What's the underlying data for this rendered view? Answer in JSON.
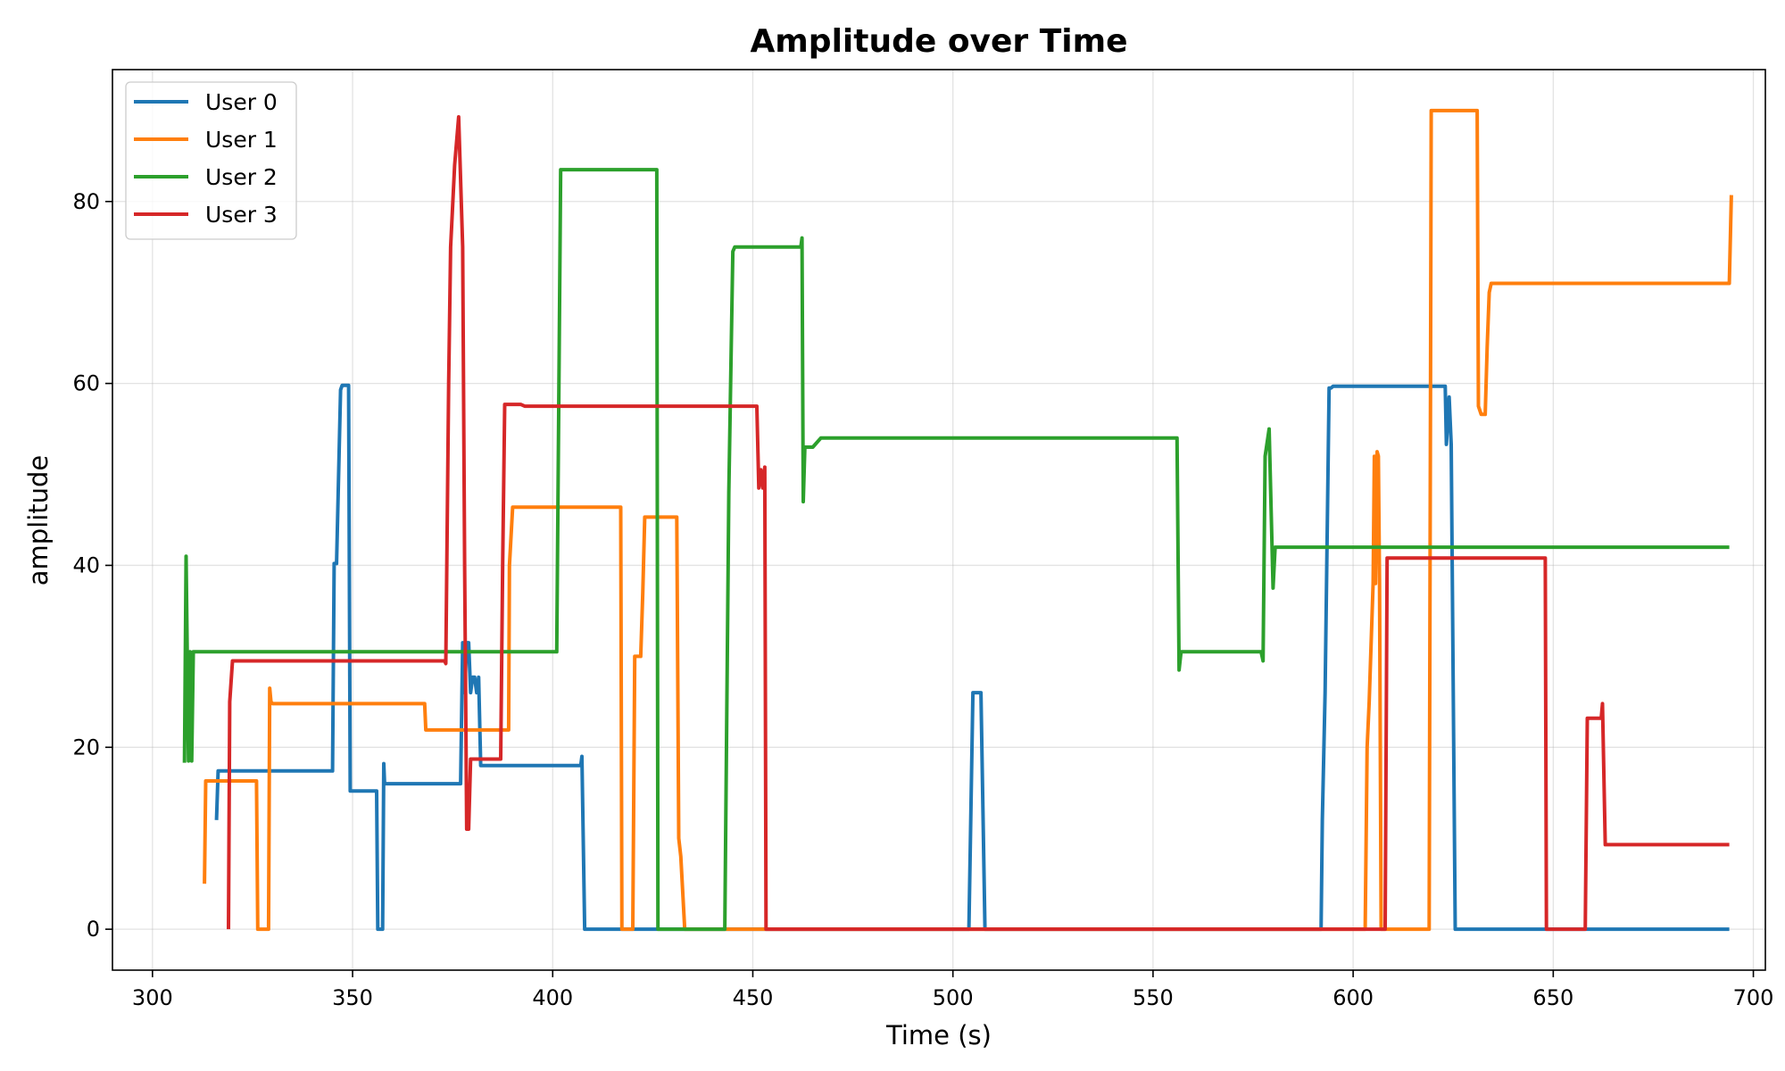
{
  "chart_data": {
    "type": "line",
    "title": "Amplitude over Time",
    "xlabel": "Time (s)",
    "ylabel": "amplitude",
    "xlim": [
      290,
      703
    ],
    "ylim": [
      -4.5,
      94.5
    ],
    "xticks": [
      300,
      350,
      400,
      450,
      500,
      550,
      600,
      650,
      700
    ],
    "yticks": [
      0,
      20,
      40,
      60,
      80
    ],
    "grid": true,
    "legend_position": "upper-left",
    "series": [
      {
        "name": "User 0",
        "color": "#1f77b4",
        "x": [
          316,
          316.4,
          317,
          345,
          345.4,
          346,
          347,
          347.4,
          349,
          349.4,
          350,
          356,
          356.3,
          357.5,
          357.8,
          358,
          377,
          377.5,
          378,
          378.5,
          379,
          379.5,
          380,
          380.5,
          381,
          381.5,
          382,
          407,
          407.3,
          408,
          504,
          505,
          507,
          508,
          592,
          592.3,
          593,
          594,
          594.5,
          595,
          597,
          623,
          623.3,
          624,
          624.5,
          625.5,
          694
        ],
        "y": [
          12,
          17.4,
          17.4,
          17.4,
          40.2,
          40.2,
          59.3,
          59.8,
          59.8,
          15.2,
          15.2,
          15.2,
          0,
          0,
          18.2,
          16,
          16,
          31.5,
          26,
          31.5,
          31.5,
          26,
          27.7,
          27.7,
          26,
          27.7,
          18,
          18,
          19,
          0,
          0,
          26,
          26,
          0,
          0,
          12,
          26,
          59.5,
          59.5,
          59.7,
          59.7,
          59.7,
          53.3,
          58.5,
          53.3,
          0,
          0
        ]
      },
      {
        "name": "User 1",
        "color": "#ff7f0e",
        "x": [
          313,
          313.3,
          314,
          326,
          326.3,
          329,
          329.3,
          329.6,
          330,
          368,
          368.3,
          389,
          389.2,
          390,
          391,
          417,
          417.3,
          420,
          420.5,
          421,
          422,
          422.5,
          423,
          431,
          431.5,
          432,
          433,
          603,
          603.5,
          604,
          605,
          605.3,
          605.6,
          606,
          606.3,
          606.6,
          607,
          619,
          619.5,
          620,
          631,
          631.3,
          632,
          633,
          633.5,
          634,
          634.5,
          635,
          694,
          694.5
        ],
        "y": [
          5,
          16.3,
          16.3,
          16.3,
          0,
          0,
          26.5,
          25,
          24.8,
          24.8,
          21.9,
          21.9,
          40,
          46.4,
          46.4,
          46.4,
          0,
          0,
          30,
          30,
          30,
          37,
          45.3,
          45.3,
          10,
          8,
          0,
          0,
          20,
          25,
          38,
          52,
          38,
          52.5,
          52,
          38,
          0,
          0,
          90,
          90,
          90,
          57.5,
          56.6,
          56.6,
          64,
          70,
          71,
          71,
          71,
          80.7
        ]
      },
      {
        "name": "User 2",
        "color": "#2ca02c",
        "x": [
          308,
          308.4,
          309,
          309.4,
          309.8,
          310.2,
          310.6,
          311,
          401,
          402,
          426,
          426.3,
          443,
          444,
          445,
          445.5,
          446,
          462,
          462.3,
          462.6,
          463,
          464,
          465,
          467,
          556,
          556.5,
          557,
          577,
          577.5,
          578,
          579,
          580,
          580.5,
          581,
          694
        ],
        "y": [
          18.3,
          41,
          18.5,
          30.5,
          18.5,
          30.5,
          30.5,
          30.5,
          30.5,
          83.5,
          83.5,
          0,
          0,
          48,
          74.5,
          75,
          75,
          75,
          76,
          47,
          53,
          53,
          53,
          54,
          54,
          28.5,
          30.5,
          30.5,
          29.5,
          52,
          55,
          37.5,
          42,
          42,
          42
        ]
      },
      {
        "name": "User 3",
        "color": "#d62728",
        "x": [
          319,
          319.3,
          320,
          373,
          373.3,
          374,
          374.5,
          375.5,
          376.5,
          377.5,
          378,
          378.5,
          379,
          379.5,
          380,
          387,
          387.5,
          388,
          392,
          393,
          451,
          451.5,
          452,
          452.5,
          453,
          453.3,
          608,
          608.5,
          609,
          648,
          648.3,
          658,
          658.5,
          659,
          662,
          662.3,
          663,
          694
        ],
        "y": [
          0,
          25,
          29.5,
          29.5,
          29.2,
          60,
          75,
          84,
          89.3,
          75,
          40,
          11,
          11,
          18.7,
          18.7,
          18.7,
          40,
          57.7,
          57.7,
          57.5,
          57.5,
          48.5,
          50.5,
          48.5,
          50.8,
          0,
          0,
          40.8,
          40.8,
          40.8,
          0,
          0,
          23.2,
          23.2,
          23.2,
          24.8,
          9.3,
          9.3
        ]
      }
    ]
  }
}
